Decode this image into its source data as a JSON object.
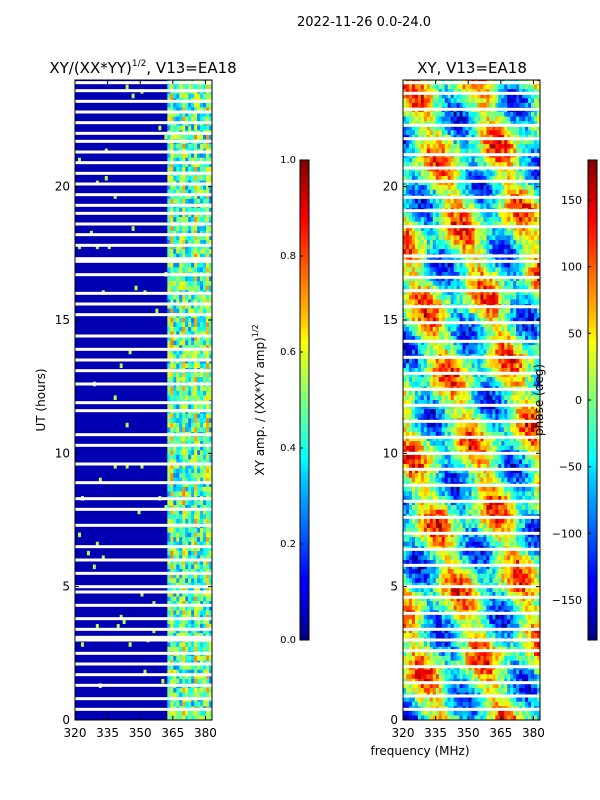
{
  "figure_title": "2022-11-26 0.0-24.0",
  "shared_xlabel": "frequency (MHz)",
  "chart_data": [
    {
      "type": "heatmap",
      "title_main": "XY/(XX*YY)",
      "title_sup": "1/2",
      "title_tail": ", V13=EA18",
      "ylabel": "UT (hours)",
      "xlim": [
        320,
        383
      ],
      "ylim": [
        0,
        24
      ],
      "xticks": [
        320,
        335,
        350,
        365,
        380
      ],
      "yticks": [
        0,
        5,
        10,
        15,
        20
      ],
      "colorbar": {
        "label_main": "XY amp. / (XX*YY amp)",
        "label_sup": "1/2",
        "range": [
          0.0,
          1.0
        ],
        "ticks": [
          "0.0",
          "0.2",
          "0.4",
          "0.6",
          "0.8",
          "1.0"
        ],
        "colormap": "jet"
      },
      "bright_band_mhz": [
        363,
        383
      ],
      "background_value": 0.05,
      "gap_rows_ut": [
        23.9,
        23.6,
        23.2,
        22.8,
        22.4,
        22.0,
        21.7,
        21.3,
        20.9,
        20.5,
        20.1,
        19.7,
        19.3,
        19.0,
        18.6,
        18.2,
        17.8,
        17.3,
        17.2,
        16.7,
        16.0,
        15.6,
        15.2,
        14.4,
        13.9,
        13.5,
        13.1,
        12.6,
        11.9,
        11.6,
        10.7,
        10.3,
        9.6,
        8.9,
        8.3,
        7.9,
        7.3,
        6.5,
        6.0,
        5.5,
        5.0,
        4.8,
        4.3,
        3.8,
        3.4,
        3.1,
        3.0,
        2.5,
        2.1,
        1.7,
        1.3,
        0.8,
        0.4
      ]
    },
    {
      "type": "heatmap",
      "title_main": "XY, V13=EA18",
      "xlim": [
        320,
        383
      ],
      "ylim": [
        0,
        24
      ],
      "xticks": [
        320,
        335,
        350,
        365,
        380
      ],
      "yticks": [
        0,
        5,
        10,
        15,
        20
      ],
      "colorbar": {
        "label_main": "phase (deg)",
        "range": [
          -180,
          180
        ],
        "ticks": [
          "−150",
          "−100",
          "−50",
          "0",
          "50",
          "100",
          "150"
        ],
        "tick_values": [
          -150,
          -100,
          -50,
          0,
          50,
          100,
          150
        ],
        "colormap": "jet"
      },
      "gap_rows_ut": [
        23.9,
        23.5,
        22.9,
        22.3,
        21.8,
        21.2,
        20.7,
        20.2,
        19.6,
        19.1,
        18.5,
        17.4,
        17.2,
        16.6,
        16.1,
        15.5,
        14.9,
        14.2,
        13.6,
        13.0,
        12.4,
        11.8,
        11.2,
        10.6,
        10.0,
        9.4,
        8.8,
        8.2,
        7.6,
        7.0,
        6.4,
        5.8,
        5.0,
        4.6,
        4.0,
        3.4,
        3.0,
        2.6,
        2.0,
        1.4,
        0.9,
        0.4
      ]
    }
  ]
}
